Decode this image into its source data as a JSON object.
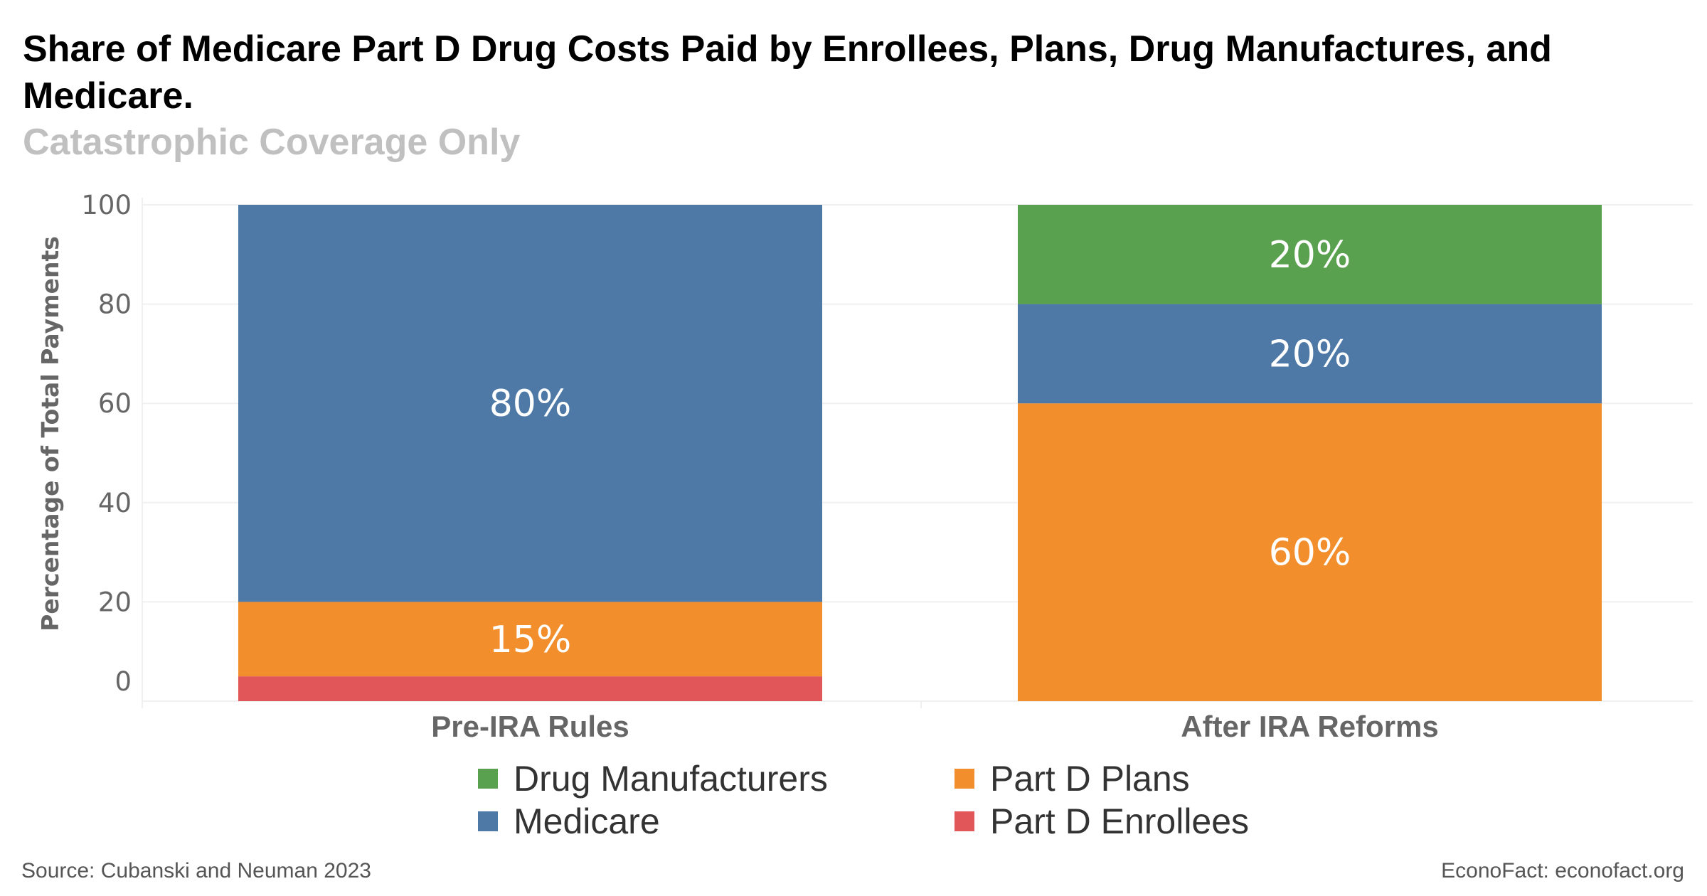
{
  "title": "Share of Medicare Part D Drug Costs Paid by Enrollees, Plans, Drug Manufactures, and Medicare.",
  "subtitle": "Catastrophic Coverage Only",
  "chart_data": {
    "type": "bar",
    "stacked": true,
    "categories": [
      "Pre-IRA Rules",
      "After IRA Reforms"
    ],
    "series": [
      {
        "name": "Part D Enrollees",
        "color": "#e15759",
        "values": [
          5,
          0
        ],
        "labels": [
          "",
          ""
        ]
      },
      {
        "name": "Part D Plans",
        "color": "#f28e2b",
        "values": [
          15,
          60
        ],
        "labels": [
          "15%",
          "60%"
        ]
      },
      {
        "name": "Medicare",
        "color": "#4e79a7",
        "values": [
          80,
          20
        ],
        "labels": [
          "80%",
          "20%"
        ]
      },
      {
        "name": "Drug Manufacturers",
        "color": "#59a14f",
        "values": [
          0,
          20
        ],
        "labels": [
          "",
          "20%"
        ]
      }
    ],
    "ylabel": "Percentage of Total Payments",
    "xlabel": "",
    "ylim": [
      0,
      100
    ],
    "yticks": [
      "0",
      "20",
      "40",
      "60",
      "80",
      "100"
    ],
    "grid": true,
    "legend_position": "bottom"
  },
  "legend": {
    "items": [
      {
        "label": "Drug Manufacturers",
        "color": "#59a14f"
      },
      {
        "label": "Part D Plans",
        "color": "#f28e2b"
      },
      {
        "label": "Medicare",
        "color": "#4e79a7"
      },
      {
        "label": "Part D Enrollees",
        "color": "#e15759"
      }
    ]
  },
  "footer": {
    "source": "Source: Cubanski and Neuman 2023",
    "credit": "EconoFact: econofact.org"
  }
}
